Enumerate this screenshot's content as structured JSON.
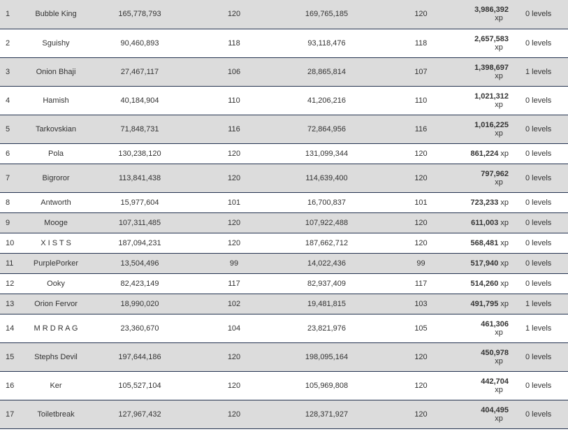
{
  "rows": [
    {
      "rank": "1",
      "name": "Bubble King",
      "score1": "165,778,793",
      "level1": "120",
      "score2": "169,765,185",
      "level2": "120",
      "xp": "3,986,392",
      "xp_unit": "xp",
      "levels": "0 levels"
    },
    {
      "rank": "2",
      "name": "Sguishy",
      "score1": "90,460,893",
      "level1": "118",
      "score2": "93,118,476",
      "level2": "118",
      "xp": "2,657,583",
      "xp_unit": "xp",
      "levels": "0 levels"
    },
    {
      "rank": "3",
      "name": "Onion Bhaji",
      "score1": "27,467,117",
      "level1": "106",
      "score2": "28,865,814",
      "level2": "107",
      "xp": "1,398,697",
      "xp_unit": "xp",
      "levels": "1 levels"
    },
    {
      "rank": "4",
      "name": "Hamish",
      "score1": "40,184,904",
      "level1": "110",
      "score2": "41,206,216",
      "level2": "110",
      "xp": "1,021,312",
      "xp_unit": "xp",
      "levels": "0 levels"
    },
    {
      "rank": "5",
      "name": "Tarkovskian",
      "score1": "71,848,731",
      "level1": "116",
      "score2": "72,864,956",
      "level2": "116",
      "xp": "1,016,225",
      "xp_unit": "xp",
      "levels": "0 levels"
    },
    {
      "rank": "6",
      "name": "Pola",
      "score1": "130,238,120",
      "level1": "120",
      "score2": "131,099,344",
      "level2": "120",
      "xp": "861,224",
      "xp_unit": "xp",
      "levels": "0 levels"
    },
    {
      "rank": "7",
      "name": "Bigroror",
      "score1": "113,841,438",
      "level1": "120",
      "score2": "114,639,400",
      "level2": "120",
      "xp": "797,962",
      "xp_unit": "xp",
      "levels": "0 levels"
    },
    {
      "rank": "8",
      "name": "Antworth",
      "score1": "15,977,604",
      "level1": "101",
      "score2": "16,700,837",
      "level2": "101",
      "xp": "723,233",
      "xp_unit": "xp",
      "levels": "0 levels"
    },
    {
      "rank": "9",
      "name": "Mooge",
      "score1": "107,311,485",
      "level1": "120",
      "score2": "107,922,488",
      "level2": "120",
      "xp": "611,003",
      "xp_unit": "xp",
      "levels": "0 levels"
    },
    {
      "rank": "10",
      "name": "X I S T S",
      "score1": "187,094,231",
      "level1": "120",
      "score2": "187,662,712",
      "level2": "120",
      "xp": "568,481",
      "xp_unit": "xp",
      "levels": "0 levels"
    },
    {
      "rank": "11",
      "name": "PurplePorker",
      "score1": "13,504,496",
      "level1": "99",
      "score2": "14,022,436",
      "level2": "99",
      "xp": "517,940",
      "xp_unit": "xp",
      "levels": "0 levels"
    },
    {
      "rank": "12",
      "name": "Ooky",
      "score1": "82,423,149",
      "level1": "117",
      "score2": "82,937,409",
      "level2": "117",
      "xp": "514,260",
      "xp_unit": "xp",
      "levels": "0 levels"
    },
    {
      "rank": "13",
      "name": "Orion Fervor",
      "score1": "18,990,020",
      "level1": "102",
      "score2": "19,481,815",
      "level2": "103",
      "xp": "491,795",
      "xp_unit": "xp",
      "levels": "1 levels"
    },
    {
      "rank": "14",
      "name": "M R D R A G",
      "score1": "23,360,670",
      "level1": "104",
      "score2": "23,821,976",
      "level2": "105",
      "xp": "461,306",
      "xp_unit": "xp",
      "levels": "1 levels"
    },
    {
      "rank": "15",
      "name": "Stephs Devil",
      "score1": "197,644,186",
      "level1": "120",
      "score2": "198,095,164",
      "level2": "120",
      "xp": "450,978",
      "xp_unit": "xp",
      "levels": "0 levels"
    },
    {
      "rank": "16",
      "name": "Ker",
      "score1": "105,527,104",
      "level1": "120",
      "score2": "105,969,808",
      "level2": "120",
      "xp": "442,704",
      "xp_unit": "xp",
      "levels": "0 levels"
    },
    {
      "rank": "17",
      "name": "Toiletbreak",
      "score1": "127,967,432",
      "level1": "120",
      "score2": "128,371,927",
      "level2": "120",
      "xp": "404,495",
      "xp_unit": "xp",
      "levels": "0 levels"
    }
  ]
}
